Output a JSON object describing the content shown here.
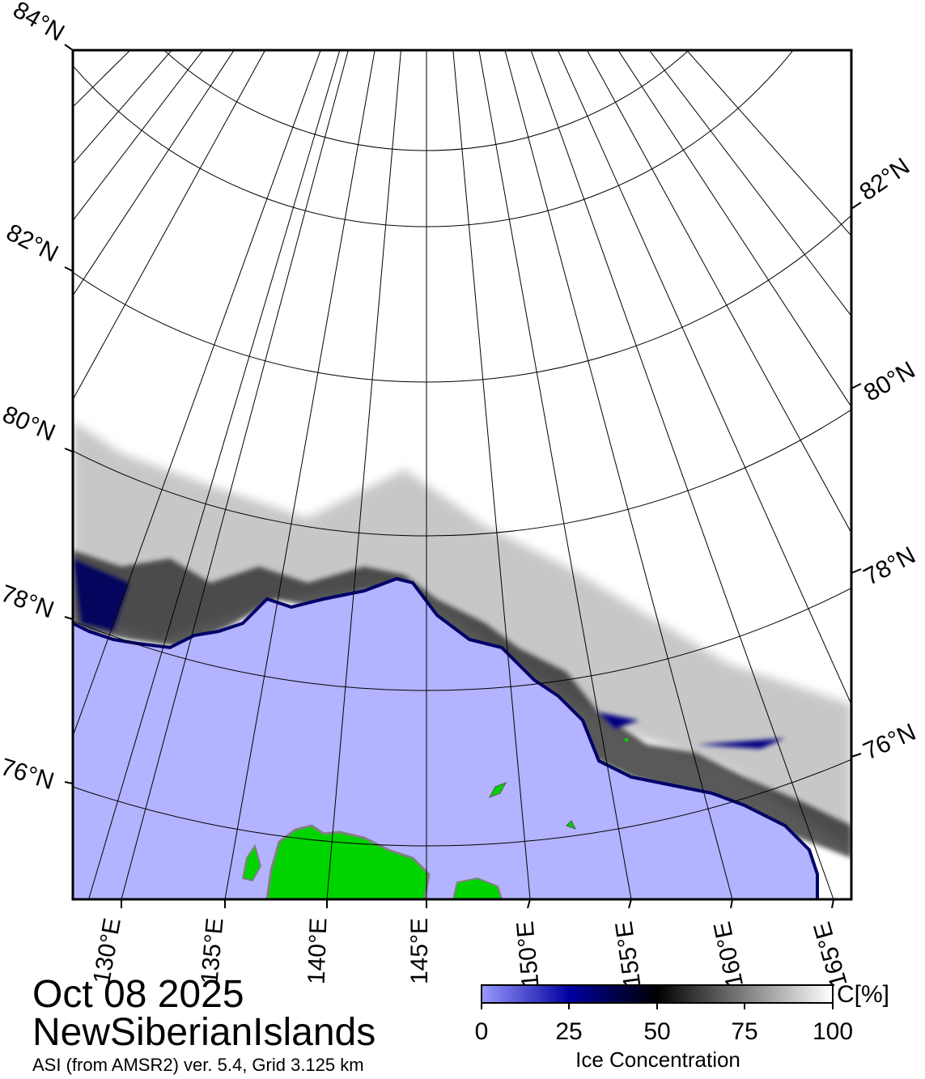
{
  "map": {
    "date": "Oct 08 2025",
    "region": "NewSiberianIslands",
    "source": "ASI (from AMSR2) ver. 5.4,  Grid 3.125 km",
    "lat_labels_left": [
      "84°N",
      "82°N",
      "80°N",
      "78°N",
      "76°N"
    ],
    "lat_labels_right": [
      "82°N",
      "80°N",
      "78°N",
      "76°N"
    ],
    "lon_labels": [
      "130°E",
      "135°E",
      "140°E",
      "145°E",
      "150°E",
      "155°E",
      "160°E",
      "165°E"
    ]
  },
  "colorbar": {
    "title": "Ice Concentration",
    "unit": "C[%]",
    "ticks": [
      "0",
      "25",
      "50",
      "75",
      "100"
    ],
    "colors": {
      "open_water": "#b3b3ff",
      "low": "#7070f0",
      "mid": "#000050",
      "black": "#000000",
      "high": "#ffffff"
    }
  },
  "legend_colors": {
    "land": "#00d400",
    "coast": "#808080",
    "frame": "#000000"
  }
}
